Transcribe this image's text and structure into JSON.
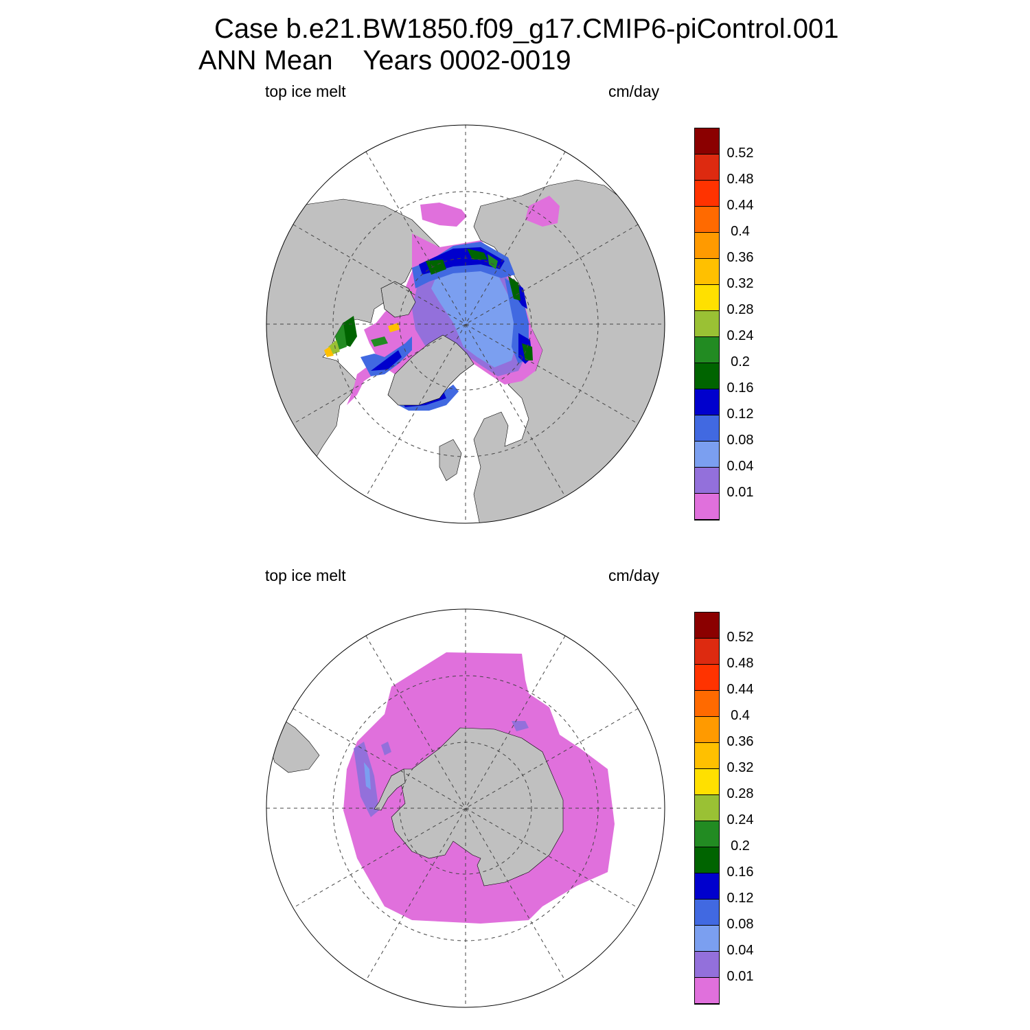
{
  "header": {
    "line1": "Case b.e21.BW1850.f09_g17.CMIP6-piControl.001",
    "line2": "ANN Mean    Years 0002-0019"
  },
  "panels": [
    {
      "id": "north",
      "hemisphere": "north",
      "left_label": "top ice melt",
      "right_label": "cm/day"
    },
    {
      "id": "south",
      "hemisphere": "south",
      "left_label": "top ice melt",
      "right_label": "cm/day"
    }
  ],
  "colorbar": {
    "levels": [
      "0.01",
      "0.04",
      "0.08",
      "0.12",
      "0.16",
      "0.2",
      "0.24",
      "0.28",
      "0.32",
      "0.36",
      "0.4",
      "0.44",
      "0.48",
      "0.52"
    ],
    "colors": [
      "#e070dc",
      "#9370db",
      "#7b9ff0",
      "#4169e1",
      "#0000cd",
      "#006400",
      "#228b22",
      "#9ac134",
      "#ffe000",
      "#ffc000",
      "#ff9a00",
      "#ff6a00",
      "#ff3300",
      "#dd2a10",
      "#8b0000"
    ]
  },
  "map_style": {
    "land": "#c0c0c0",
    "ocean": "#ffffff",
    "grid": "#444444"
  }
}
